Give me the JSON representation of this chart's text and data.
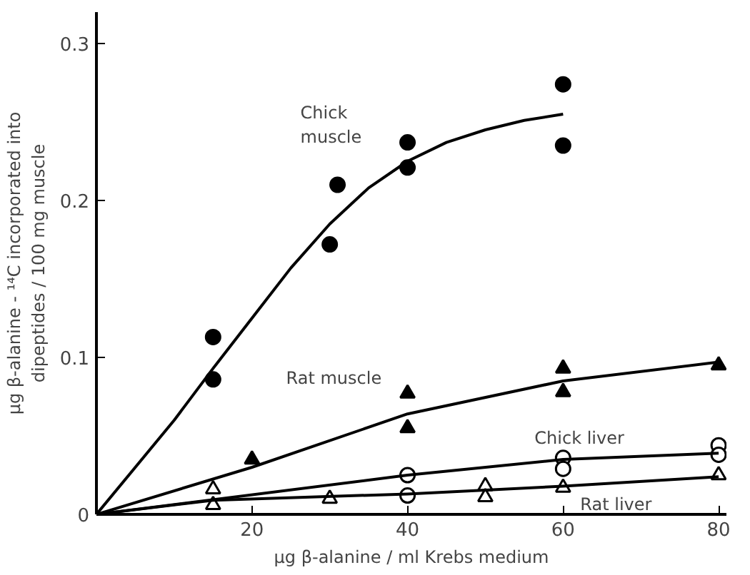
{
  "chart_data": {
    "type": "scatter",
    "xlabel": "μg β-alanine / ml Krebs medium",
    "ylabel": "μg β-alanine - ¹⁴C incorporated into\ndipeptides / 100 mg muscle",
    "xlim": [
      0,
      81
    ],
    "ylim": [
      0,
      0.32
    ],
    "xticks": [
      20,
      40,
      60,
      80
    ],
    "yticks": [
      {
        "value": 0,
        "label": "0"
      },
      0.1,
      0.2,
      0.3
    ],
    "grid": false,
    "series": [
      {
        "marker": "circle",
        "color": "#000000",
        "x": [
          15,
          15,
          30,
          31,
          40,
          40,
          60,
          60
        ],
        "values": [
          0.113,
          0.086,
          0.172,
          0.21,
          0.237,
          0.221,
          0.274,
          0.235
        ]
      },
      {
        "marker": "triangle",
        "color": "#000000",
        "x": [
          20,
          40,
          40,
          60,
          60,
          80
        ],
        "values": [
          0.035,
          0.077,
          0.055,
          0.093,
          0.078,
          0.095
        ]
      },
      {
        "marker": "circle",
        "color": "#ffffff",
        "x": [
          40,
          40,
          60,
          60,
          80,
          80
        ],
        "values": [
          0.025,
          0.012,
          0.036,
          0.029,
          0.044,
          0.038
        ]
      },
      {
        "marker": "triangle",
        "color": "#ffffff",
        "x": [
          15,
          15,
          30,
          50,
          50,
          60,
          80
        ],
        "values": [
          0.016,
          0.006,
          0.01,
          0.018,
          0.011,
          0.017,
          0.025
        ]
      },
      {
        "type": "line",
        "name": "Chick\nmuscle",
        "color": "#000000",
        "x": [
          0,
          5,
          10,
          15,
          20,
          25,
          30,
          35,
          40,
          45,
          50,
          55,
          60
        ],
        "values": [
          0,
          0.03,
          0.06,
          0.093,
          0.125,
          0.157,
          0.185,
          0.208,
          0.225,
          0.237,
          0.245,
          0.251,
          0.255
        ]
      },
      {
        "type": "line",
        "name": "Rat muscle",
        "color": "#000000",
        "x": [
          0,
          20,
          40,
          60,
          80
        ],
        "values": [
          0,
          0.03,
          0.064,
          0.085,
          0.097
        ]
      },
      {
        "type": "line",
        "name": "Chick liver",
        "color": "#000000",
        "x": [
          0,
          40,
          60,
          80
        ],
        "values": [
          0,
          0.025,
          0.035,
          0.039
        ]
      },
      {
        "type": "line",
        "name": "Rat liver",
        "color": "#000000",
        "x": [
          0,
          15,
          40,
          60,
          80
        ],
        "values": [
          0,
          0.009,
          0.013,
          0.018,
          0.024
        ]
      }
    ]
  }
}
